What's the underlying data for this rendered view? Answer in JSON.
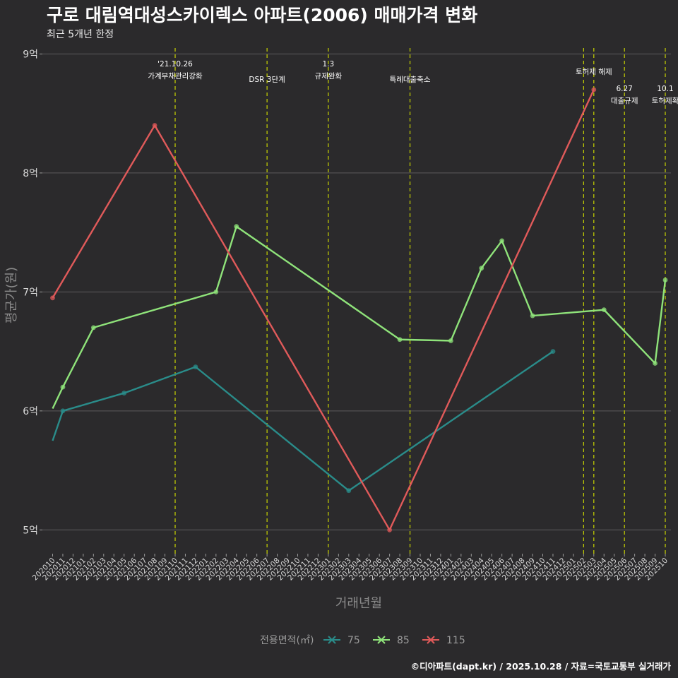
{
  "chart_data": {
    "type": "line",
    "title": "구로 대림역대성스카이렉스 아파트(2006) 매매가격 변화",
    "subtitle": "최근 5개년 한정",
    "xlabel": "거래년월",
    "ylabel": "평균가(원)",
    "caption": "©디아파트(dapt.kr) / 2025.10.28 / 자료=국토교통부 실거래가",
    "ylim": [
      4.8,
      9.05
    ],
    "yticks": [
      {
        "value": 5,
        "label": "5억"
      },
      {
        "value": 6,
        "label": "6억"
      },
      {
        "value": 7,
        "label": "7억"
      },
      {
        "value": 8,
        "label": "8억"
      },
      {
        "value": 9,
        "label": "9억"
      }
    ],
    "categories": [
      "202010",
      "202011",
      "202012",
      "202101",
      "202102",
      "202103",
      "202104",
      "202105",
      "202106",
      "202107",
      "202108",
      "202109",
      "202110",
      "202111",
      "202112",
      "202201",
      "202202",
      "202203",
      "202204",
      "202205",
      "202206",
      "202207",
      "202208",
      "202209",
      "202210",
      "202211",
      "202212",
      "202301",
      "202302",
      "202303",
      "202304",
      "202305",
      "202306",
      "202307",
      "202308",
      "202309",
      "202310",
      "202311",
      "202312",
      "202401",
      "202402",
      "202403",
      "202404",
      "202405",
      "202406",
      "202407",
      "202408",
      "202409",
      "202410",
      "202411",
      "202412",
      "202501",
      "202502",
      "202503",
      "202504",
      "202505",
      "202506",
      "202507",
      "202508",
      "202509",
      "202510"
    ],
    "legend_title": "전용면적(㎡)",
    "series": [
      {
        "name": "75",
        "color": "#2a8c8a",
        "points": [
          {
            "x": "202010",
            "y": 5.75,
            "marker": false
          },
          {
            "x": "202011",
            "y": 6.0
          },
          {
            "x": "202105",
            "y": 6.15
          },
          {
            "x": "202112",
            "y": 6.37
          },
          {
            "x": "202303",
            "y": 5.33
          },
          {
            "x": "202411",
            "y": 6.5
          }
        ]
      },
      {
        "name": "85",
        "color": "#8fe37a",
        "points": [
          {
            "x": "202010",
            "y": 6.02,
            "marker": false
          },
          {
            "x": "202011",
            "y": 6.2
          },
          {
            "x": "202102",
            "y": 6.7
          },
          {
            "x": "202202",
            "y": 7.0
          },
          {
            "x": "202204",
            "y": 7.55
          },
          {
            "x": "202308",
            "y": 6.6
          },
          {
            "x": "202401",
            "y": 6.59
          },
          {
            "x": "202404",
            "y": 7.2
          },
          {
            "x": "202406",
            "y": 7.43
          },
          {
            "x": "202409",
            "y": 6.8
          },
          {
            "x": "202504",
            "y": 6.85
          },
          {
            "x": "202509",
            "y": 6.4
          },
          {
            "x": "202510",
            "y": 7.1
          }
        ]
      },
      {
        "name": "115",
        "color": "#e05a5a",
        "points": [
          {
            "x": "202010",
            "y": 6.95
          },
          {
            "x": "202108",
            "y": 8.4
          },
          {
            "x": "202307",
            "y": 5.0
          },
          {
            "x": "202503",
            "y": 8.7
          }
        ]
      }
    ],
    "events": [
      {
        "x": 12.0,
        "lines": [
          "'21.10.26",
          "가계부채관리강화"
        ],
        "level": 0
      },
      {
        "x": 21.0,
        "lines": [
          "DSR 3단계"
        ],
        "level": 1
      },
      {
        "x": 27.0,
        "lines": [
          "1.3",
          "규제완화"
        ],
        "level": 0
      },
      {
        "x": 35.0,
        "lines": [
          "특례대출축소"
        ],
        "level": 1
      },
      {
        "x": 52.0,
        "lines": [],
        "level": 0
      },
      {
        "x": 53.0,
        "lines": [
          "토허제 해제"
        ],
        "level": 0.5
      },
      {
        "x": 56.0,
        "lines": [
          "6.27",
          "대출규제"
        ],
        "level": 1.6
      },
      {
        "x": 60.0,
        "lines": [
          "10.1",
          "토허제확"
        ],
        "level": 1.6
      }
    ]
  }
}
